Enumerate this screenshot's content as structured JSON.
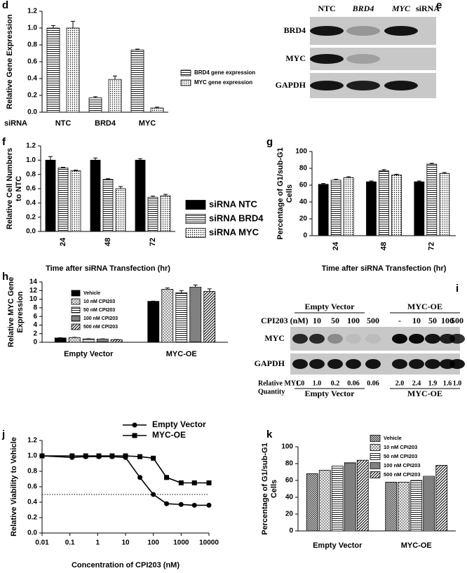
{
  "chart_data": [
    {
      "type": "bar",
      "panel": "d",
      "ylabel": [
        "Relative Gene Expression"
      ],
      "x_prefix": "siRNA",
      "categories": [
        "NTC",
        "BRD4",
        "MYC"
      ],
      "series": [
        {
          "name": "BRD4 gene expression",
          "color": "#000000",
          "pattern": "hlines",
          "values": [
            1.0,
            0.17,
            0.74
          ],
          "errors": [
            0.03,
            0.015,
            0.01
          ]
        },
        {
          "name": "MYC gene expression",
          "color": "#000000",
          "pattern": "dots",
          "values": [
            1.0,
            0.39,
            0.05
          ],
          "errors": [
            0.08,
            0.04,
            0.01
          ]
        }
      ],
      "ylim": [
        0,
        1.2
      ],
      "yticks": [
        {
          "value": 0,
          "label": "0.0"
        },
        0.2,
        0.4,
        0.6,
        0.8,
        {
          "value": 1,
          "label": "1.0"
        },
        1.2
      ]
    },
    {
      "type": "bar",
      "panel": "f",
      "ylabel": [
        "Relative Cell Numbers",
        "to NTC"
      ],
      "xlabel": "Time after siRNA Transfection (hr)",
      "categories": [
        "24",
        "48",
        "72"
      ],
      "series": [
        {
          "name": "siRNA NTC",
          "color": "#000000",
          "values": [
            1.0,
            1.0,
            1.0
          ],
          "errors": [
            0.05,
            0.03,
            0.02
          ]
        },
        {
          "name": "siRNA BRD4",
          "color": "#000000",
          "pattern": "hlines",
          "values": [
            0.89,
            0.73,
            0.48
          ],
          "errors": [
            0.01,
            0.01,
            0.015
          ]
        },
        {
          "name": "siRNA MYC",
          "color": "#000000",
          "pattern": "dots",
          "values": [
            0.85,
            0.6,
            0.5
          ],
          "errors": [
            0.01,
            0.03,
            0.02
          ]
        }
      ],
      "ylim": [
        0,
        1.2
      ],
      "yticks": [
        {
          "value": 0,
          "label": "0.0"
        },
        0.2,
        0.4,
        0.6,
        0.8,
        {
          "value": 1,
          "label": "1.0"
        },
        1.2
      ]
    },
    {
      "type": "bar",
      "panel": "g",
      "ylabel": [
        "Percentage of G1/sub-G1",
        "Cells"
      ],
      "xlabel": "Time after siRNA Transfection (hr)",
      "categories": [
        "24",
        "48",
        "72"
      ],
      "series": [
        {
          "color": "#000000",
          "values": [
            61,
            64,
            64
          ],
          "errors": [
            1,
            1,
            1
          ]
        },
        {
          "color": "#000000",
          "pattern": "hlines",
          "values": [
            66,
            77,
            85
          ],
          "errors": [
            1,
            1.5,
            1
          ]
        },
        {
          "color": "#000000",
          "pattern": "dots",
          "values": [
            69,
            72,
            74
          ],
          "errors": [
            1,
            1,
            1
          ]
        }
      ],
      "ylim": [
        0,
        100
      ],
      "yticks": [
        0,
        20,
        40,
        60,
        80,
        100
      ]
    },
    {
      "type": "bar",
      "panel": "h",
      "ylabel": [
        "Relative MYC Gene",
        "Expression"
      ],
      "categories": [
        "Empty Vector",
        "MYC-OE"
      ],
      "series": [
        {
          "name": "Vehicle",
          "color": "#000000",
          "values": [
            1.0,
            9.5
          ],
          "errors": [
            0.05,
            0.05
          ]
        },
        {
          "name": "10 nM CPI203",
          "color": "#000000",
          "pattern": "checker",
          "values": [
            1.1,
            12.3
          ],
          "errors": [
            0.05,
            0.3
          ]
        },
        {
          "name": "50 nM CPI203",
          "color": "#000000",
          "pattern": "hlines",
          "values": [
            0.8,
            11.5
          ],
          "errors": [
            0.05,
            0.5
          ]
        },
        {
          "name": "100 nM CPI203",
          "color": "#000000",
          "pattern": "hdense",
          "values": [
            0.75,
            12.8
          ],
          "errors": [
            0.05,
            0.5
          ]
        },
        {
          "name": "500 nM CPI203",
          "color": "#000000",
          "pattern": "diag",
          "values": [
            0.6,
            11.8
          ],
          "errors": [
            0.05,
            0.6
          ]
        }
      ],
      "ylim": [
        0,
        14
      ],
      "yticks": [
        0,
        2,
        4,
        6,
        8,
        10,
        12,
        14
      ]
    },
    {
      "type": "line",
      "panel": "j",
      "ylabel": [
        "Relative Viability to Vehicle"
      ],
      "xlabel": "Concentration of CPI203 (nM)",
      "xscale": "log",
      "x": [
        0.01,
        0.12,
        0.37,
        1.1,
        3.3,
        10,
        33,
        100,
        300,
        1000,
        3000,
        10000
      ],
      "series": [
        {
          "name": "Empty Vector",
          "color": "#000000",
          "marker": "circle",
          "values": [
            1.0,
            0.98,
            0.99,
            0.99,
            0.99,
            0.98,
            0.72,
            0.5,
            0.38,
            0.37,
            0.36,
            0.36
          ]
        },
        {
          "name": "MYC-OE",
          "color": "#000000",
          "marker": "square",
          "values": [
            1.0,
            1.0,
            1.0,
            1.0,
            1.0,
            1.0,
            0.99,
            0.97,
            0.72,
            0.65,
            0.65,
            0.65
          ]
        }
      ],
      "reference_line": 0.5,
      "xlim": [
        0.01,
        10000
      ],
      "xticks": [
        0.01,
        0.1,
        1,
        10,
        100,
        1000,
        10000
      ],
      "ylim": [
        0,
        1.2
      ],
      "yticks": [
        {
          "value": 0,
          "label": "0.0"
        },
        0.2,
        0.4,
        0.6,
        0.8,
        {
          "value": 1,
          "label": "1.0"
        },
        1.2
      ]
    },
    {
      "type": "bar",
      "panel": "k",
      "ylabel": [
        "Percentage of G1/sub-G1",
        "Cells"
      ],
      "categories": [
        "Empty Vector",
        "MYC-OE"
      ],
      "series": [
        {
          "name": "Vehicle",
          "color": "#000000",
          "pattern": "cross",
          "values": [
            68,
            58
          ]
        },
        {
          "name": "10 nM CPI203",
          "color": "#000000",
          "pattern": "checker",
          "values": [
            72,
            58
          ]
        },
        {
          "name": "50 nM CPI203",
          "color": "#000000",
          "pattern": "hlines",
          "values": [
            77,
            60
          ]
        },
        {
          "name": "100 nM CPI203",
          "color": "#000000",
          "pattern": "hdense",
          "values": [
            81,
            65
          ]
        },
        {
          "name": "500 nM CPI203",
          "color": "#000000",
          "pattern": "diag",
          "values": [
            84,
            78
          ]
        }
      ],
      "ylim": [
        0,
        100
      ],
      "yticks": [
        0,
        20,
        40,
        60,
        80,
        100
      ]
    }
  ],
  "blot_e": {
    "panel": "e",
    "columns": [
      "NTC",
      "BRD4",
      "MYC"
    ],
    "suffix": "siRNA",
    "rows": [
      "BRD4",
      "MYC",
      "GAPDH"
    ]
  },
  "blot_i": {
    "panel": "i",
    "groups": [
      "Empty Vector",
      "MYC-OE"
    ],
    "treatment_label": "CPI203 (nM)",
    "lanes": [
      [
        "-",
        "10",
        "50",
        "100",
        "500"
      ],
      [
        "-",
        "10",
        "50",
        "100",
        "500"
      ]
    ],
    "rows": [
      "MYC",
      "GAPDH"
    ],
    "quantity_label": [
      "Relative MYC",
      "Quantity"
    ],
    "quantities": [
      [
        "1.0",
        "1.0",
        "0.2",
        "0.06",
        "0.06"
      ],
      [
        "2.0",
        "2.4",
        "1.9",
        "1.6",
        "1.0"
      ]
    ],
    "footer_groups": [
      "Empty Vector",
      "MYC-OE"
    ]
  }
}
